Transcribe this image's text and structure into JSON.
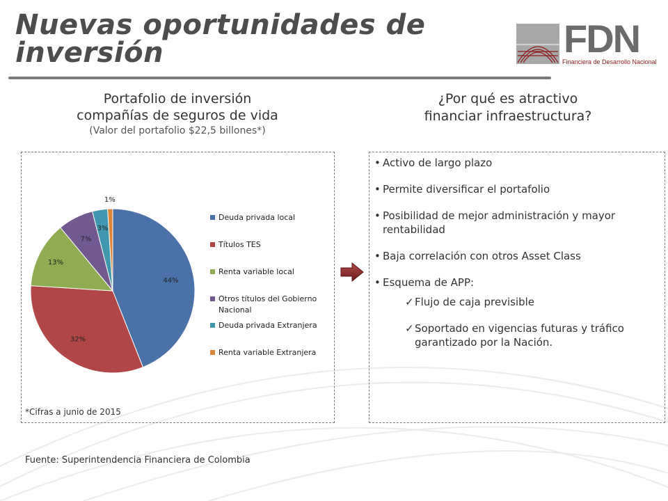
{
  "header": {
    "title_line1": "Nuevas oportunidades de",
    "title_line2": "inversión",
    "logo_text": "FDN",
    "logo_subtitle": "Financiera de Desarrollo Nacional"
  },
  "left": {
    "heading_line1": "Portafolio de inversión",
    "heading_line2": "compañías de seguros de vida",
    "heading_sub": "(Valor del portafolio $22,5 billones*)",
    "footnote": "*Cifras a junio de 2015",
    "source": "Fuente: Superintendencia Financiera de Colombia"
  },
  "right": {
    "heading_line1": "¿Por qué es atractivo",
    "heading_line2": "financiar infraestructura?",
    "bullets": [
      "Activo de largo plazo",
      "Permite diversificar el portafolio",
      "Posibilidad de mejor administración y mayor rentabilidad",
      "Baja correlación con otros Asset Class",
      "Esquema de APP:"
    ],
    "checks": [
      "Flujo de caja previsible",
      "Soportado en vigencias futuras y tráfico garantizado por la Nación."
    ],
    "check_symbol": "✓"
  },
  "colors": {
    "accent_red": "#8b1a1a",
    "arrow": "#8b2a2a"
  },
  "chart_data": {
    "type": "pie",
    "categories": [
      "Deuda privada local",
      "Títulos TES",
      "Renta variable local",
      "Otros títulos del Gobierno Nacional",
      "Deuda privada Extranjera",
      "Renta variable Extranjera"
    ],
    "values": [
      44,
      32,
      13,
      7,
      3,
      1
    ],
    "labels": [
      "44%",
      "32%",
      "13%",
      "7%",
      "3%",
      "1%"
    ],
    "colors": [
      "#4a72a8",
      "#b04746",
      "#8fac52",
      "#725a91",
      "#4198ae",
      "#dc8539"
    ],
    "legend_position": "right"
  }
}
